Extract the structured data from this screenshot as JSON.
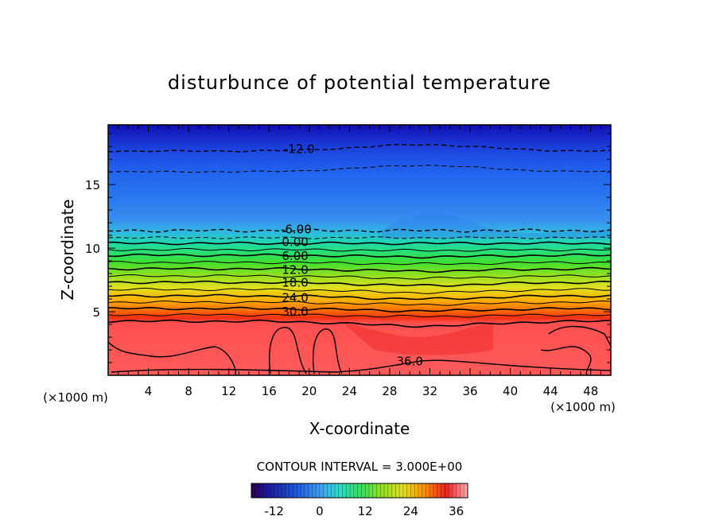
{
  "chart_data": {
    "type": "contour",
    "title": "disturbunce of potential temperature",
    "xlabel": "X-coordinate",
    "ylabel": "Z-coordinate",
    "x_unit": "(×1000 m)",
    "y_unit": "(×1000 m)",
    "xlim": [
      0,
      50
    ],
    "ylim": [
      0,
      19.7
    ],
    "xticks": [
      4,
      8,
      12,
      16,
      20,
      24,
      28,
      32,
      36,
      40,
      44,
      48
    ],
    "yticks": [
      5,
      10,
      15
    ],
    "contour_interval_text": "CONTOUR INTERVAL = 3.000E+00",
    "contour_labels": [
      {
        "text": "-12.0",
        "x": 19,
        "z": 17.6
      },
      {
        "text": "-6.00",
        "x": 18.7,
        "z": 11.3
      },
      {
        "text": "0.00",
        "x": 18.6,
        "z": 10.3
      },
      {
        "text": "6.00",
        "x": 18.6,
        "z": 9.2
      },
      {
        "text": "12.0",
        "x": 18.6,
        "z": 8.1
      },
      {
        "text": "18.0",
        "x": 18.6,
        "z": 7.1
      },
      {
        "text": "24.0",
        "x": 18.6,
        "z": 5.9
      },
      {
        "text": "30.0",
        "x": 18.6,
        "z": 4.8
      },
      {
        "text": "36.0",
        "x": 30,
        "z": 0.9
      }
    ],
    "colorbar": {
      "range": [
        -18,
        39
      ],
      "ticks": [
        -12,
        0,
        12,
        24,
        36
      ],
      "tick_labels": [
        "-12",
        "0",
        "12",
        "24",
        "36"
      ]
    }
  }
}
